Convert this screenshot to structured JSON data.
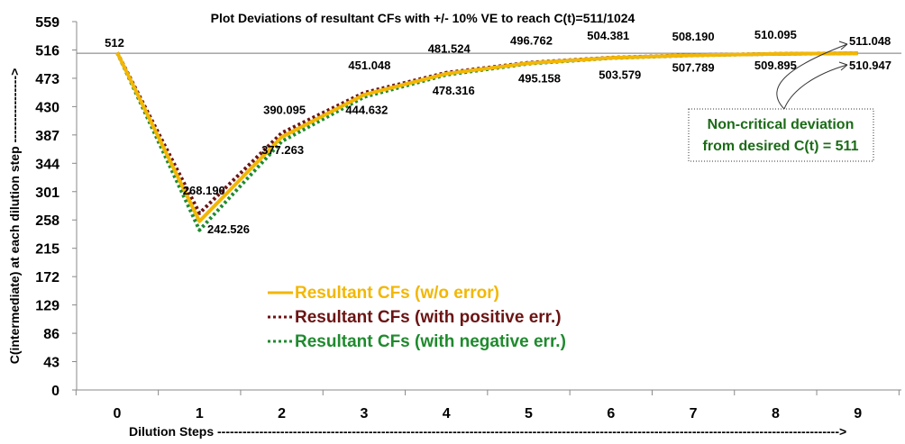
{
  "chart_data": {
    "type": "line",
    "title": "Plot  Deviations of resultant CFs with +/- 10% VE to reach C(t)=511/1024",
    "xlabel": "Dilution Steps ---------------------------------------------------------------------------------------------------------------------------------------------------->",
    "ylabel": "C(intermediate) at each dilution step ---------------->",
    "x": [
      0,
      1,
      2,
      3,
      4,
      5,
      6,
      7,
      8,
      9
    ],
    "x_tick_labels": [
      "0",
      "1",
      "2",
      "3",
      "4",
      "5",
      "6",
      "7",
      "8",
      "9"
    ],
    "y_tick_labels": [
      "0",
      "43",
      "86",
      "129",
      "172",
      "215",
      "258",
      "301",
      "344",
      "387",
      "430",
      "473",
      "516",
      "559"
    ],
    "ylim": [
      0,
      559
    ],
    "reference_line": 511,
    "series": [
      {
        "name": "Resultant CFs (w/o error)",
        "color": "#f2b705",
        "style": "solid",
        "values": [
          512,
          256,
          384,
          448,
          480,
          496,
          504,
          508,
          510,
          511
        ]
      },
      {
        "name": "Resultant CFs (with positive err.)",
        "color": "#6b1414",
        "style": "dotted",
        "values": [
          512,
          268.19,
          390.095,
          451.048,
          481.524,
          496.762,
          504.381,
          508.19,
          510.095,
          511.048
        ]
      },
      {
        "name": "Resultant CFs (with negative err.)",
        "color": "#1f8a2e",
        "style": "dotted",
        "values": [
          512,
          242.526,
          377.263,
          444.632,
          478.316,
          495.158,
          503.579,
          507.789,
          509.895,
          510.947
        ]
      }
    ],
    "data_labels": {
      "start": "512",
      "positive": [
        "268.190",
        "390.095",
        "451.048",
        "481.524",
        "496.762",
        "504.381",
        "508.190",
        "510.095",
        "511.048"
      ],
      "negative": [
        "242.526",
        "377.263",
        "444.632",
        "478.316",
        "495.158",
        "503.579",
        "507.789",
        "509.895",
        "510.947"
      ]
    },
    "annotation": {
      "line1": "Non-critical deviation",
      "line2": "from desired C(t) = 511"
    },
    "legend_placement": "bottom-center"
  }
}
